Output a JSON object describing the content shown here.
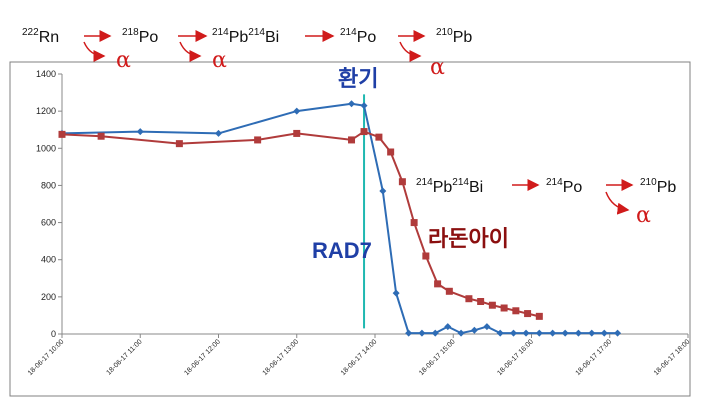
{
  "chart_data": {
    "type": "line",
    "title": "",
    "xlabel": "",
    "ylabel": "",
    "ylim": [
      0,
      1400
    ],
    "yticks": [
      0,
      200,
      400,
      600,
      800,
      1000,
      1200,
      1400
    ],
    "xlim_hours": [
      10,
      18
    ],
    "xticks": [
      {
        "hour": 10,
        "label": "18-06-17 10:00"
      },
      {
        "hour": 11,
        "label": "18-06-17 11:00"
      },
      {
        "hour": 12,
        "label": "18-06-17 12:00"
      },
      {
        "hour": 13,
        "label": "18-06-17 13:00"
      },
      {
        "hour": 14,
        "label": "18-06-17 14:00"
      },
      {
        "hour": 15,
        "label": "18-06-17 15:00"
      },
      {
        "hour": 16,
        "label": "18-06-17 16:00"
      },
      {
        "hour": 17,
        "label": "18-06-17 17:00"
      },
      {
        "hour": 18,
        "label": "18-06-17 18:00"
      }
    ],
    "grid": false,
    "series": [
      {
        "name": "RAD7",
        "color": "#2e6cb5",
        "marker": "diamond",
        "points": [
          [
            10.0,
            1080
          ],
          [
            11.0,
            1090
          ],
          [
            12.0,
            1080
          ],
          [
            13.0,
            1200
          ],
          [
            13.7,
            1240
          ],
          [
            13.86,
            1230
          ],
          [
            14.1,
            770
          ],
          [
            14.27,
            220
          ],
          [
            14.43,
            5
          ],
          [
            14.6,
            5
          ],
          [
            14.77,
            5
          ],
          [
            14.93,
            40
          ],
          [
            15.1,
            5
          ],
          [
            15.27,
            20
          ],
          [
            15.43,
            40
          ],
          [
            15.6,
            5
          ],
          [
            15.77,
            5
          ],
          [
            15.93,
            5
          ],
          [
            16.1,
            5
          ],
          [
            16.27,
            5
          ],
          [
            16.43,
            5
          ],
          [
            16.6,
            5
          ],
          [
            16.77,
            5
          ],
          [
            16.93,
            5
          ],
          [
            17.1,
            5
          ]
        ]
      },
      {
        "name": "라돈아이",
        "color": "#b03b3b",
        "marker": "square",
        "points": [
          [
            10.0,
            1075
          ],
          [
            10.5,
            1065
          ],
          [
            11.5,
            1025
          ],
          [
            12.5,
            1045
          ],
          [
            13.0,
            1080
          ],
          [
            13.7,
            1045
          ],
          [
            13.86,
            1090
          ],
          [
            14.05,
            1060
          ],
          [
            14.2,
            980
          ],
          [
            14.35,
            820
          ],
          [
            14.5,
            600
          ],
          [
            14.65,
            420
          ],
          [
            14.8,
            270
          ],
          [
            14.95,
            230
          ],
          [
            15.2,
            190
          ],
          [
            15.35,
            175
          ],
          [
            15.5,
            155
          ],
          [
            15.65,
            140
          ],
          [
            15.8,
            125
          ],
          [
            15.95,
            110
          ],
          [
            16.1,
            95
          ]
        ]
      }
    ],
    "event_line": {
      "hour": 13.86,
      "label": "환기",
      "color": "#1fb8b0"
    }
  },
  "labels": {
    "ventilation": "환기",
    "rad7": "RAD7",
    "radon_eye": "라돈아이"
  },
  "decay_chain_top": {
    "n1": {
      "mass": "222",
      "sym": "Rn"
    },
    "n2": {
      "mass": "218",
      "sym": "Po"
    },
    "n3": {
      "mass1": "214",
      "sym1": "Pb",
      "mass2": "214",
      "sym2": "Bi"
    },
    "n4": {
      "mass": "214",
      "sym": "Po"
    },
    "n5": {
      "mass": "210",
      "sym": "Pb"
    },
    "alpha": "α"
  },
  "decay_chain_mid": {
    "n1": {
      "mass1": "214",
      "sym1": "Pb",
      "mass2": "214",
      "sym2": "Bi"
    },
    "n2": {
      "mass": "214",
      "sym": "Po"
    },
    "n3": {
      "mass": "210",
      "sym": "Pb"
    },
    "alpha": "α"
  },
  "colors": {
    "arrow": "#d01b1b",
    "frame": "#808080"
  }
}
